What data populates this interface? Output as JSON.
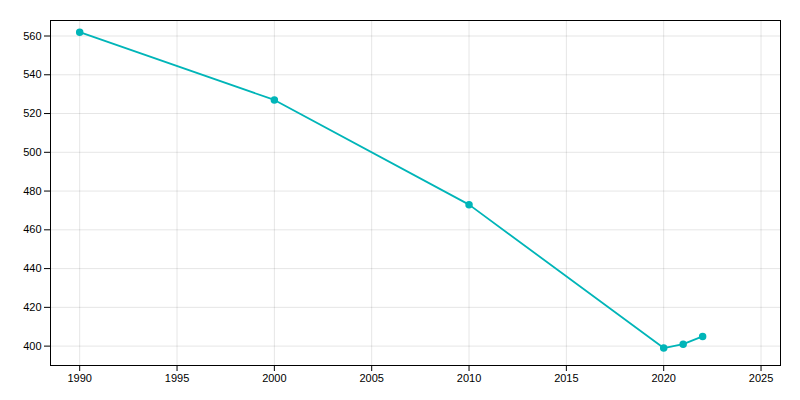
{
  "chart_data": {
    "type": "line",
    "x": [
      1990,
      2000,
      2010,
      2020,
      2021,
      2022
    ],
    "values": [
      562,
      527,
      473,
      399,
      401,
      405
    ],
    "color": "#00B5B8",
    "marker": "circle",
    "xlim": [
      1988.5,
      2026
    ],
    "ylim": [
      390,
      568
    ],
    "xticks": [
      1990,
      1995,
      2000,
      2005,
      2010,
      2015,
      2020,
      2025
    ],
    "yticks": [
      400,
      420,
      440,
      460,
      480,
      500,
      520,
      540,
      560
    ],
    "grid": true
  }
}
